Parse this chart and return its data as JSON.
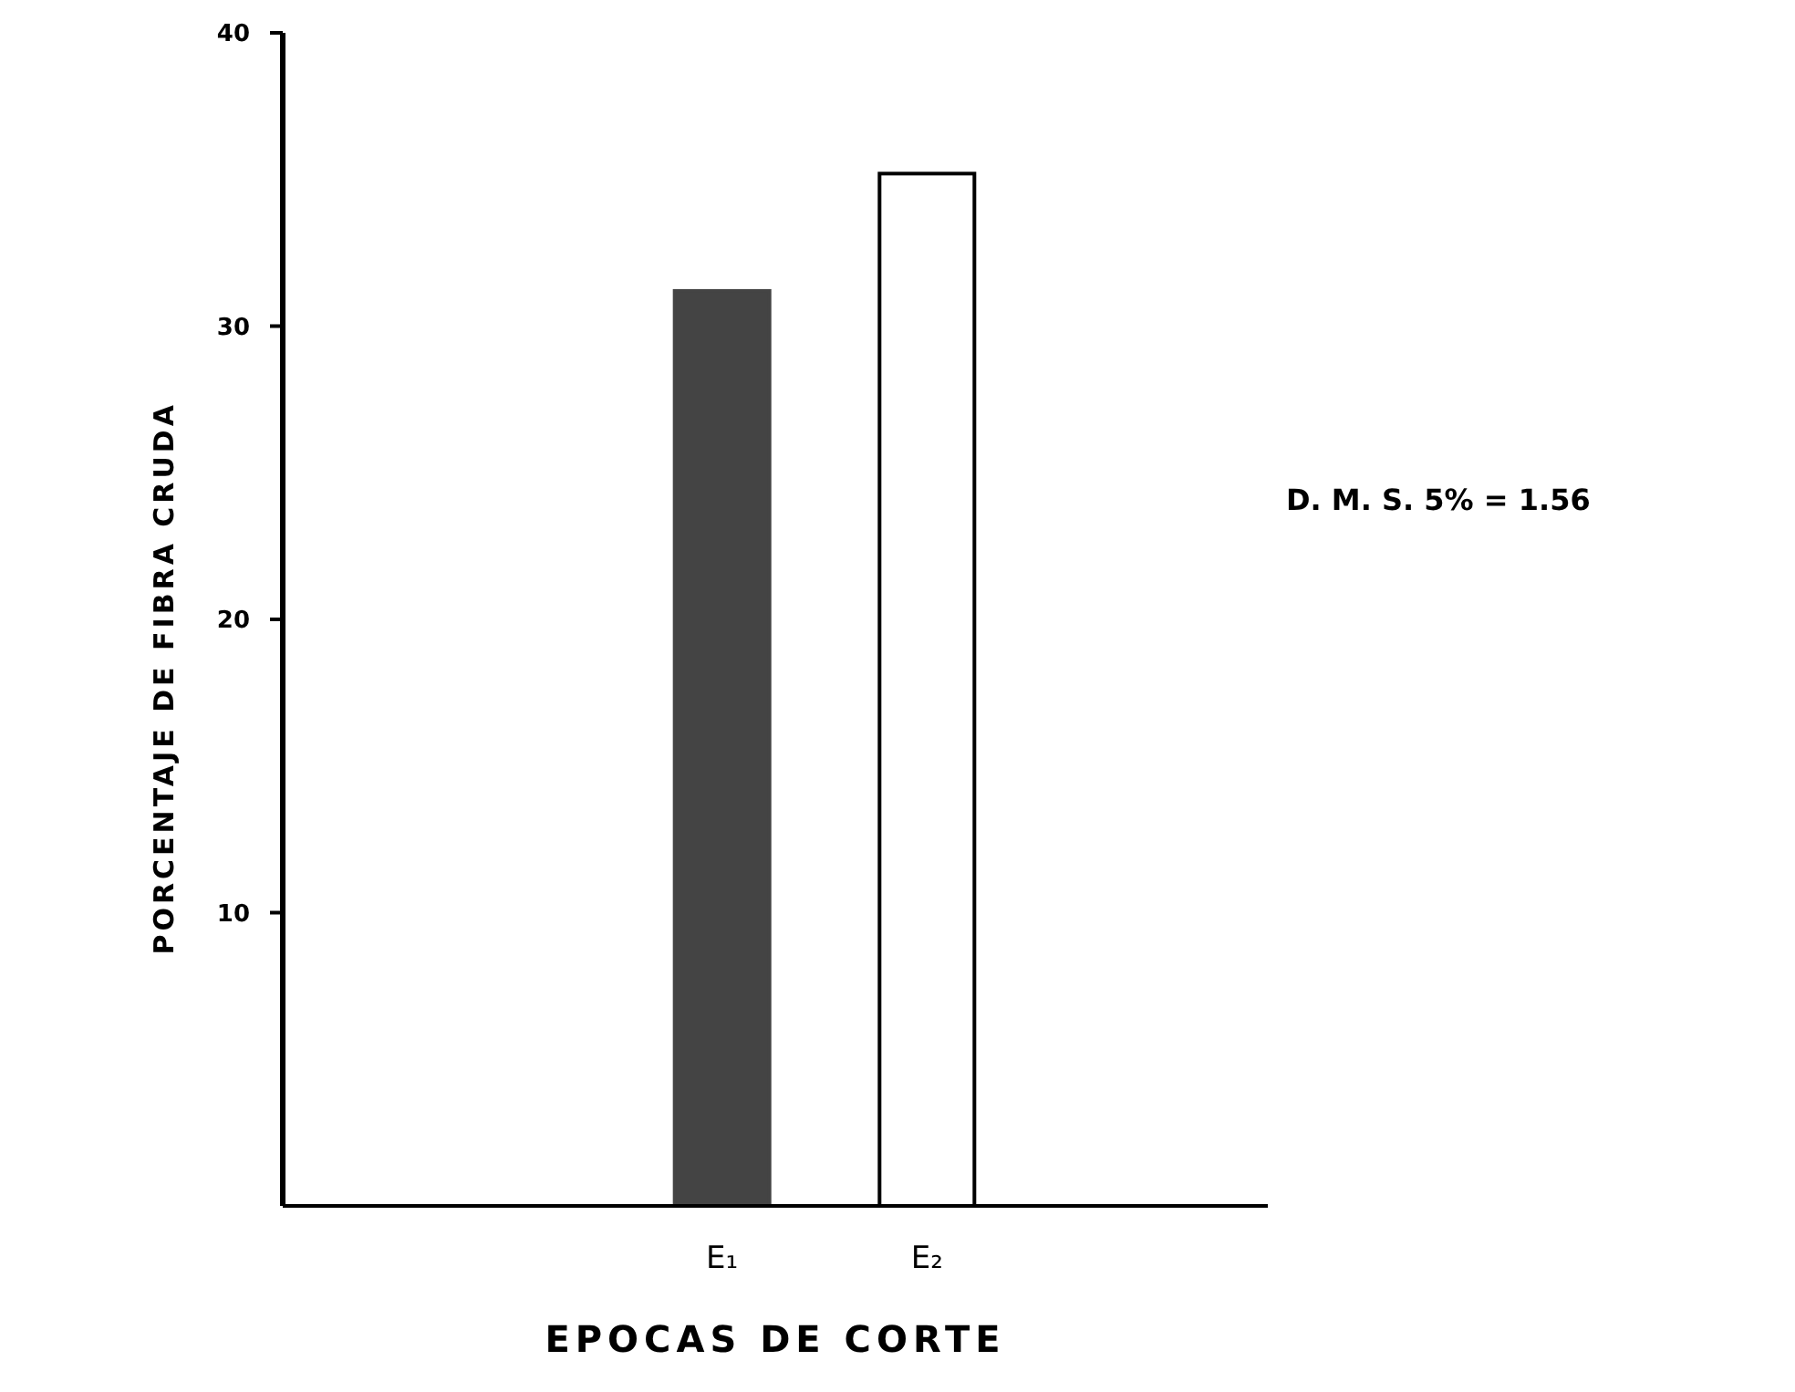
{
  "chart_data": {
    "type": "bar",
    "xlabel": "EPOCAS DE CORTE",
    "ylabel": "PORCENTAJE DE FIBRA CRUDA",
    "categories": [
      "E₁",
      "E₂"
    ],
    "values": [
      31.2,
      35.2
    ],
    "colors": [
      "#444444",
      "#ffffff"
    ],
    "ylim": [
      0,
      40
    ],
    "yticks": [
      10,
      20,
      30,
      40
    ],
    "grid": false,
    "annotations": [
      "D. M. S. 5% = 1.56"
    ]
  }
}
